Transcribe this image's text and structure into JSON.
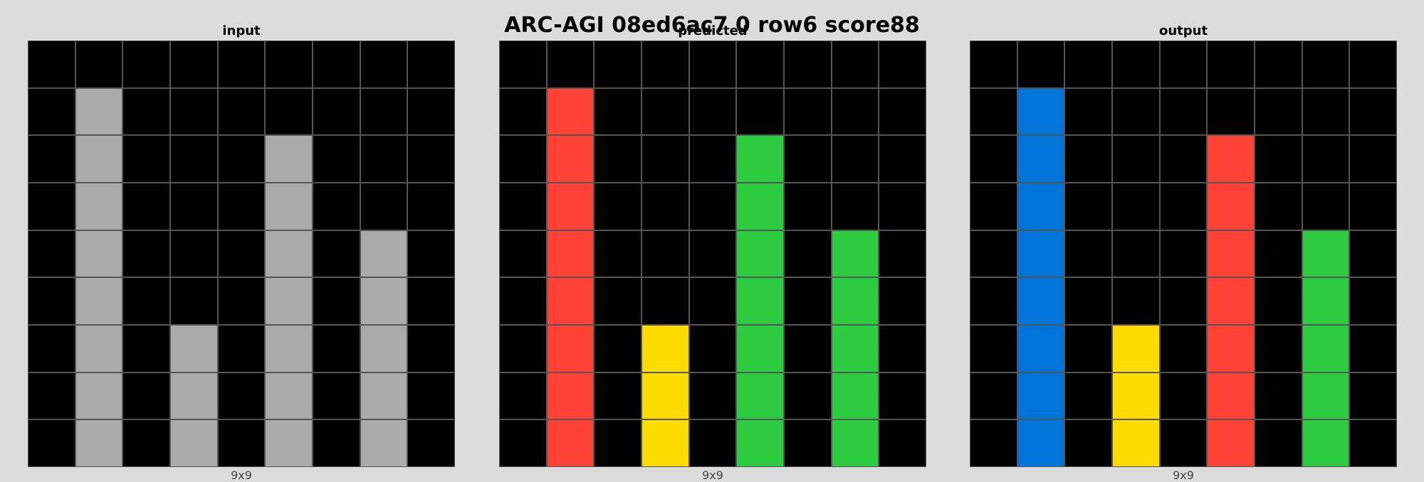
{
  "title": "ARC-AGI 08ed6ac7 0 row6 score88",
  "palette": {
    "0": "#000000",
    "1": "#0074D9",
    "2": "#FF4136",
    "3": "#2ECC40",
    "4": "#FFDC00",
    "5": "#AAAAAA"
  },
  "grid_line_color": "#555555",
  "panels": [
    {
      "title": "input",
      "dims": "9x9",
      "grid": [
        [
          0,
          0,
          0,
          0,
          0,
          0,
          0,
          0,
          0
        ],
        [
          0,
          5,
          0,
          0,
          0,
          0,
          0,
          0,
          0
        ],
        [
          0,
          5,
          0,
          0,
          0,
          5,
          0,
          0,
          0
        ],
        [
          0,
          5,
          0,
          0,
          0,
          5,
          0,
          0,
          0
        ],
        [
          0,
          5,
          0,
          0,
          0,
          5,
          0,
          5,
          0
        ],
        [
          0,
          5,
          0,
          0,
          0,
          5,
          0,
          5,
          0
        ],
        [
          0,
          5,
          0,
          5,
          0,
          5,
          0,
          5,
          0
        ],
        [
          0,
          5,
          0,
          5,
          0,
          5,
          0,
          5,
          0
        ],
        [
          0,
          5,
          0,
          5,
          0,
          5,
          0,
          5,
          0
        ]
      ]
    },
    {
      "title": "predicted",
      "dims": "9x9",
      "grid": [
        [
          0,
          0,
          0,
          0,
          0,
          0,
          0,
          0,
          0
        ],
        [
          0,
          2,
          0,
          0,
          0,
          0,
          0,
          0,
          0
        ],
        [
          0,
          2,
          0,
          0,
          0,
          3,
          0,
          0,
          0
        ],
        [
          0,
          2,
          0,
          0,
          0,
          3,
          0,
          0,
          0
        ],
        [
          0,
          2,
          0,
          0,
          0,
          3,
          0,
          3,
          0
        ],
        [
          0,
          2,
          0,
          0,
          0,
          3,
          0,
          3,
          0
        ],
        [
          0,
          2,
          0,
          4,
          0,
          3,
          0,
          3,
          0
        ],
        [
          0,
          2,
          0,
          4,
          0,
          3,
          0,
          3,
          0
        ],
        [
          0,
          2,
          0,
          4,
          0,
          3,
          0,
          3,
          0
        ]
      ]
    },
    {
      "title": "output",
      "dims": "9x9",
      "grid": [
        [
          0,
          0,
          0,
          0,
          0,
          0,
          0,
          0,
          0
        ],
        [
          0,
          1,
          0,
          0,
          0,
          0,
          0,
          0,
          0
        ],
        [
          0,
          1,
          0,
          0,
          0,
          2,
          0,
          0,
          0
        ],
        [
          0,
          1,
          0,
          0,
          0,
          2,
          0,
          0,
          0
        ],
        [
          0,
          1,
          0,
          0,
          0,
          2,
          0,
          3,
          0
        ],
        [
          0,
          1,
          0,
          0,
          0,
          2,
          0,
          3,
          0
        ],
        [
          0,
          1,
          0,
          4,
          0,
          2,
          0,
          3,
          0
        ],
        [
          0,
          1,
          0,
          4,
          0,
          2,
          0,
          3,
          0
        ],
        [
          0,
          1,
          0,
          4,
          0,
          2,
          0,
          3,
          0
        ]
      ]
    }
  ]
}
